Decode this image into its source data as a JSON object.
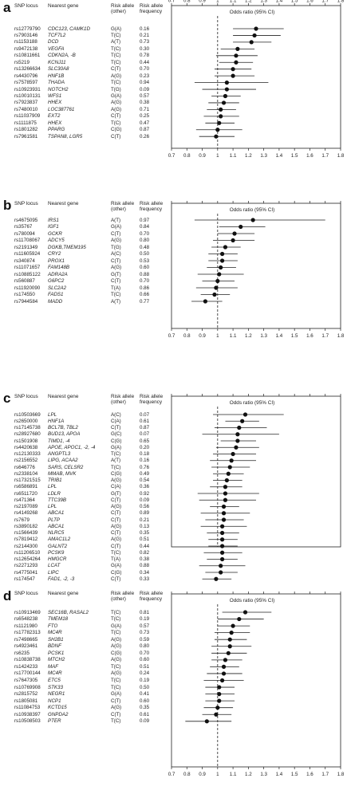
{
  "headers": {
    "snp": "SNP locus",
    "gene": "Nearest gene",
    "risk_allele_line1": "Risk allele",
    "risk_allele_line2": "(other)",
    "freq_line1": "Risk allele",
    "freq_line2": "frequency",
    "odds": "Odds ratio (95% CI)"
  },
  "chart_data": [
    {
      "type": "forest",
      "panel": "a",
      "xlim": [
        0.7,
        1.8
      ],
      "x_ticks": [
        "0.7",
        "0.8",
        "0.9",
        "1",
        "1.1",
        "1.2",
        "1.3",
        "1.4",
        "1.5",
        "1.6",
        "1.7",
        "1.8"
      ],
      "reference_line": 1,
      "xlabel": "Odds ratio (95% CI)",
      "ticks_bottom": true,
      "rows": [
        {
          "snp": "rs12779790",
          "gene": "CDC123, CAMK1D",
          "allele": "G(A)",
          "freq": "0.16",
          "or": 1.25,
          "lo": 1.1,
          "hi": 1.43
        },
        {
          "snp": "rs7903146",
          "gene": "TCF7L2",
          "allele": "T(C)",
          "freq": "0.21",
          "or": 1.24,
          "lo": 1.1,
          "hi": 1.41
        },
        {
          "snp": "rs1153188",
          "gene": "DCD",
          "allele": "A(T)",
          "freq": "0.73",
          "or": 1.22,
          "lo": 1.1,
          "hi": 1.35
        },
        {
          "snp": "rs9472138",
          "gene": "VEGFA",
          "allele": "T(C)",
          "freq": "0.30",
          "or": 1.13,
          "lo": 1.02,
          "hi": 1.24
        },
        {
          "snp": "rs10811661",
          "gene": "CDKN2A, -B",
          "allele": "T(C)",
          "freq": "0.78",
          "or": 1.12,
          "lo": 0.99,
          "hi": 1.26
        },
        {
          "snp": "rs5219",
          "gene": "KCNJ11",
          "allele": "T(C)",
          "freq": "0.44",
          "or": 1.12,
          "lo": 1.01,
          "hi": 1.23
        },
        {
          "snp": "rs13266634",
          "gene": "SLC30A8",
          "allele": "C(T)",
          "freq": "0.70",
          "or": 1.1,
          "lo": 0.98,
          "hi": 1.22
        },
        {
          "snp": "rs4430796",
          "gene": "HNF1B",
          "allele": "A(G)",
          "freq": "0.23",
          "or": 1.1,
          "lo": 0.98,
          "hi": 1.24
        },
        {
          "snp": "rs7578597",
          "gene": "THADA",
          "allele": "T(C)",
          "freq": "0.94",
          "or": 1.06,
          "lo": 0.85,
          "hi": 1.33
        },
        {
          "snp": "rs10923931",
          "gene": "NOTCH2",
          "allele": "T(G)",
          "freq": "0.09",
          "or": 1.06,
          "lo": 0.9,
          "hi": 1.25
        },
        {
          "snp": "rs10010131",
          "gene": "WFS1",
          "allele": "G(A)",
          "freq": "0.57",
          "or": 1.05,
          "lo": 0.96,
          "hi": 1.15
        },
        {
          "snp": "rs7923837",
          "gene": "HHEX",
          "allele": "A(G)",
          "freq": "0.38",
          "or": 1.04,
          "lo": 0.94,
          "hi": 1.14
        },
        {
          "snp": "rs7480010",
          "gene": "LOC387761",
          "allele": "A(G)",
          "freq": "0.71",
          "or": 1.02,
          "lo": 0.93,
          "hi": 1.12
        },
        {
          "snp": "rs11037909",
          "gene": "EXT2",
          "allele": "C(T)",
          "freq": "0.25",
          "or": 1.02,
          "lo": 0.91,
          "hi": 1.14
        },
        {
          "snp": "rs1111875",
          "gene": "HHEX",
          "allele": "T(C)",
          "freq": "0.47",
          "or": 1.01,
          "lo": 0.92,
          "hi": 1.11
        },
        {
          "snp": "rs1801282",
          "gene": "PPARG",
          "allele": "C(G)",
          "freq": "0.87",
          "or": 1.0,
          "lo": 0.86,
          "hi": 1.16
        },
        {
          "snp": "rs7961581",
          "gene": "TSPAN8, LGR5",
          "allele": "C(T)",
          "freq": "0.26",
          "or": 0.99,
          "lo": 0.88,
          "hi": 1.11
        }
      ]
    },
    {
      "type": "forest",
      "panel": "b",
      "xlim": [
        0.7,
        1.8
      ],
      "x_ticks": [
        "0.7",
        "0.8",
        "0.9",
        "1",
        "1.1",
        "1.2",
        "1.3",
        "1.4",
        "1.5",
        "1.6",
        "1.7",
        "1.8"
      ],
      "reference_line": 1,
      "xlabel": "Odds ratio (95% CI)",
      "ticks_bottom": true,
      "rows": [
        {
          "snp": "rs4675095",
          "gene": "IRS1",
          "allele": "A(T)",
          "freq": "0.97",
          "or": 1.23,
          "lo": 0.85,
          "hi": 1.7
        },
        {
          "snp": "rs35767",
          "gene": "IGF1",
          "allele": "G(A)",
          "freq": "0.84",
          "or": 1.15,
          "lo": 1.01,
          "hi": 1.31
        },
        {
          "snp": "rs780094",
          "gene": "GCKR",
          "allele": "C(T)",
          "freq": "0.70",
          "or": 1.11,
          "lo": 1.0,
          "hi": 1.24
        },
        {
          "snp": "rs11708067",
          "gene": "ADCY5",
          "allele": "A(G)",
          "freq": "0.80",
          "or": 1.1,
          "lo": 0.97,
          "hi": 1.24
        },
        {
          "snp": "rs2191349",
          "gene": "DGKB,TMEM195",
          "allele": "T(G)",
          "freq": "0.48",
          "or": 1.05,
          "lo": 0.96,
          "hi": 1.15
        },
        {
          "snp": "rs11605924",
          "gene": "CRY2",
          "allele": "A(C)",
          "freq": "0.50",
          "or": 1.03,
          "lo": 0.94,
          "hi": 1.13
        },
        {
          "snp": "rs340874",
          "gene": "PROX1",
          "allele": "C(T)",
          "freq": "0.53",
          "or": 1.03,
          "lo": 0.94,
          "hi": 1.13
        },
        {
          "snp": "rs11071657",
          "gene": "FAM148B",
          "allele": "A(G)",
          "freq": "0.60",
          "or": 1.02,
          "lo": 0.93,
          "hi": 1.12
        },
        {
          "snp": "rs10885122",
          "gene": "ADRA2A",
          "allele": "G(T)",
          "freq": "0.88",
          "or": 1.01,
          "lo": 0.87,
          "hi": 1.17
        },
        {
          "snp": "rs560887",
          "gene": "G6PC2",
          "allele": "C(T)",
          "freq": "0.70",
          "or": 1.0,
          "lo": 0.9,
          "hi": 1.11
        },
        {
          "snp": "rs11920090",
          "gene": "SLC2A2",
          "allele": "T(A)",
          "freq": "0.86",
          "or": 0.99,
          "lo": 0.86,
          "hi": 1.13
        },
        {
          "snp": "rs174550",
          "gene": "FADS1",
          "allele": "T(C)",
          "freq": "0.66",
          "or": 0.98,
          "lo": 0.89,
          "hi": 1.08
        },
        {
          "snp": "rs7944584",
          "gene": "MADD",
          "allele": "A(T)",
          "freq": "0.77",
          "or": 0.92,
          "lo": 0.83,
          "hi": 1.03
        }
      ]
    },
    {
      "type": "forest",
      "panel": "c",
      "xlim": [
        0.7,
        1.8
      ],
      "x_ticks": [
        "0.7",
        "0.8",
        "0.9",
        "1",
        "1.1",
        "1.2",
        "1.3",
        "1.4",
        "1.5",
        "1.6",
        "1.7",
        "1.8"
      ],
      "reference_line": 1,
      "xlabel": "Odds ratio (95% CI)",
      "ticks_bottom": false,
      "rows": [
        {
          "snp": "rs10503669",
          "gene": "LPL",
          "allele": "A(C)",
          "freq": "0.07",
          "or": 1.18,
          "lo": 0.97,
          "hi": 1.43
        },
        {
          "snp": "rs2650000",
          "gene": "HNF1A",
          "allele": "C(A)",
          "freq": "0.61",
          "or": 1.16,
          "lo": 1.05,
          "hi": 1.27
        },
        {
          "snp": "rs17145738",
          "gene": "BCL7B, TBL2",
          "allele": "C(T)",
          "freq": "0.87",
          "or": 1.14,
          "lo": 0.98,
          "hi": 1.32
        },
        {
          "snp": "rs28927680",
          "gene": "BUD13, APOA",
          "allele": "G(C)",
          "freq": "0.07",
          "or": 1.13,
          "lo": 0.9,
          "hi": 1.4
        },
        {
          "snp": "rs1501908",
          "gene": "TIMD1, -4",
          "allele": "C(G)",
          "freq": "0.65",
          "or": 1.13,
          "lo": 1.02,
          "hi": 1.25
        },
        {
          "snp": "rs4420638",
          "gene": "APOE, APOC1, -2, -4",
          "allele": "G(A)",
          "freq": "0.20",
          "or": 1.12,
          "lo": 0.99,
          "hi": 1.27
        },
        {
          "snp": "rs12130333",
          "gene": "ANGPTL3",
          "allele": "T(C)",
          "freq": "0.18",
          "or": 1.1,
          "lo": 0.97,
          "hi": 1.25
        },
        {
          "snp": "rs2156552",
          "gene": "LIPG, ACAA2",
          "allele": "A(T)",
          "freq": "0.16",
          "or": 1.09,
          "lo": 0.95,
          "hi": 1.25
        },
        {
          "snp": "rs646776",
          "gene": "SARS, CELSR2",
          "allele": "T(C)",
          "freq": "0.76",
          "or": 1.08,
          "lo": 0.96,
          "hi": 1.21
        },
        {
          "snp": "rs2338104",
          "gene": "MMAB, MVK",
          "allele": "C(G)",
          "freq": "0.49",
          "or": 1.07,
          "lo": 0.97,
          "hi": 1.17
        },
        {
          "snp": "rs17321515",
          "gene": "TRIB1",
          "allele": "A(G)",
          "freq": "0.54",
          "or": 1.06,
          "lo": 0.97,
          "hi": 1.16
        },
        {
          "snp": "rs6586891",
          "gene": "LPL",
          "allele": "C(A)",
          "freq": "0.36",
          "or": 1.05,
          "lo": 0.95,
          "hi": 1.16
        },
        {
          "snp": "rs6511720",
          "gene": "LDLR",
          "allele": "G(T)",
          "freq": "0.92",
          "or": 1.05,
          "lo": 0.87,
          "hi": 1.27
        },
        {
          "snp": "rs471364",
          "gene": "TTC39B",
          "allele": "C(T)",
          "freq": "0.09",
          "or": 1.05,
          "lo": 0.88,
          "hi": 1.25
        },
        {
          "snp": "rs2197089",
          "gene": "LPL",
          "allele": "A(G)",
          "freq": "0.56",
          "or": 1.04,
          "lo": 0.95,
          "hi": 1.14
        },
        {
          "snp": "rs4149268",
          "gene": "ABCA1",
          "allele": "C(T)",
          "freq": "0.89",
          "or": 1.04,
          "lo": 0.89,
          "hi": 1.21
        },
        {
          "snp": "rs7679",
          "gene": "PLTP",
          "allele": "C(T)",
          "freq": "0.21",
          "or": 1.04,
          "lo": 0.92,
          "hi": 1.17
        },
        {
          "snp": "rs3890182",
          "gene": "ABCA1",
          "allele": "A(G)",
          "freq": "0.13",
          "or": 1.03,
          "lo": 0.89,
          "hi": 1.19
        },
        {
          "snp": "rs1566439",
          "gene": "NLRC5",
          "allele": "C(T)",
          "freq": "0.35",
          "or": 1.03,
          "lo": 0.93,
          "hi": 1.14
        },
        {
          "snp": "rs7819412",
          "gene": "AMAC1L2",
          "allele": "A(G)",
          "freq": "0.51",
          "or": 1.03,
          "lo": 0.94,
          "hi": 1.13
        },
        {
          "snp": "rs2144300",
          "gene": "GALNT2",
          "allele": "C(T)",
          "freq": "0.44",
          "or": 1.03,
          "lo": 0.94,
          "hi": 1.13
        },
        {
          "snp": "rs11206510",
          "gene": "PCSK9",
          "allele": "T(C)",
          "freq": "0.82",
          "or": 1.03,
          "lo": 0.91,
          "hi": 1.16
        },
        {
          "snp": "rs12654264",
          "gene": "HMGCR",
          "allele": "T(A)",
          "freq": "0.38",
          "or": 1.03,
          "lo": 0.93,
          "hi": 1.13
        },
        {
          "snp": "rs2271293",
          "gene": "LCAT",
          "allele": "G(A)",
          "freq": "0.88",
          "or": 1.02,
          "lo": 0.88,
          "hi": 1.18
        },
        {
          "snp": "rs4775041",
          "gene": "LIPC",
          "allele": "C(G)",
          "freq": "0.34",
          "or": 1.02,
          "lo": 0.92,
          "hi": 1.13
        },
        {
          "snp": "rs174547",
          "gene": "FAD1, -2, -3",
          "allele": "C(T)",
          "freq": "0.33",
          "or": 0.99,
          "lo": 0.9,
          "hi": 1.09
        }
      ]
    },
    {
      "type": "forest",
      "panel": "d",
      "xlim": [
        0.7,
        1.8
      ],
      "x_ticks": [
        "0.7",
        "0.8",
        "0.9",
        "1",
        "1.1",
        "1.2",
        "1.3",
        "1.4",
        "1.5",
        "1.6",
        "1.7",
        "1.8"
      ],
      "reference_line": 1,
      "xlabel": "Odds ratio (95% CI)",
      "ticks_bottom": true,
      "rows": [
        {
          "snp": "rs10913469",
          "gene": "SEC16B, RASAL2",
          "allele": "T(C)",
          "freq": "0.81",
          "or": 1.18,
          "lo": 1.03,
          "hi": 1.35
        },
        {
          "snp": "rs6548238",
          "gene": "TMEM18",
          "allele": "T(C)",
          "freq": "0.19",
          "or": 1.14,
          "lo": 1.0,
          "hi": 1.3
        },
        {
          "snp": "rs1121980",
          "gene": "FTO",
          "allele": "G(A)",
          "freq": "0.57",
          "or": 1.1,
          "lo": 1.0,
          "hi": 1.21
        },
        {
          "snp": "rs17782313",
          "gene": "MC4R",
          "allele": "T(C)",
          "freq": "0.73",
          "or": 1.09,
          "lo": 0.98,
          "hi": 1.21
        },
        {
          "snp": "rs7498665",
          "gene": "SH2B1",
          "allele": "A(G)",
          "freq": "0.59",
          "or": 1.08,
          "lo": 0.98,
          "hi": 1.19
        },
        {
          "snp": "rs4923461",
          "gene": "BDNF",
          "allele": "A(G)",
          "freq": "0.80",
          "or": 1.08,
          "lo": 0.96,
          "hi": 1.22
        },
        {
          "snp": "rs6235",
          "gene": "PCSK1",
          "allele": "C(G)",
          "freq": "0.70",
          "or": 1.07,
          "lo": 0.96,
          "hi": 1.19
        },
        {
          "snp": "rs10838738",
          "gene": "MTCH2",
          "allele": "A(G)",
          "freq": "0.60",
          "or": 1.05,
          "lo": 0.96,
          "hi": 1.16
        },
        {
          "snp": "rs1424233",
          "gene": "MAF",
          "allele": "T(C)",
          "freq": "0.51",
          "or": 1.04,
          "lo": 0.95,
          "hi": 1.14
        },
        {
          "snp": "rs17700144",
          "gene": "MC4R",
          "allele": "A(G)",
          "freq": "0.24",
          "or": 1.04,
          "lo": 0.93,
          "hi": 1.16
        },
        {
          "snp": "rs7647305",
          "gene": "ETC5",
          "allele": "T(C)",
          "freq": "0.19",
          "or": 1.03,
          "lo": 0.91,
          "hi": 1.17
        },
        {
          "snp": "rs10769908",
          "gene": "STK33",
          "allele": "T(C)",
          "freq": "0.50",
          "or": 1.01,
          "lo": 0.92,
          "hi": 1.11
        },
        {
          "snp": "rs2815752",
          "gene": "NEGR1",
          "allele": "G(A)",
          "freq": "0.41",
          "or": 1.01,
          "lo": 0.92,
          "hi": 1.11
        },
        {
          "snp": "rs1805081",
          "gene": "NCP1",
          "allele": "C(T)",
          "freq": "0.60",
          "or": 1.01,
          "lo": 0.92,
          "hi": 1.11
        },
        {
          "snp": "rs11084753",
          "gene": "KCTD15",
          "allele": "A(G)",
          "freq": "0.35",
          "or": 1.0,
          "lo": 0.91,
          "hi": 1.1
        },
        {
          "snp": "rs10938397",
          "gene": "GNPDA2",
          "allele": "C(T)",
          "freq": "0.61",
          "or": 0.99,
          "lo": 0.9,
          "hi": 1.09
        },
        {
          "snp": "rs10508503",
          "gene": "PTER",
          "allele": "T(C)",
          "freq": "0.09",
          "or": 0.93,
          "lo": 0.79,
          "hi": 1.09
        }
      ]
    }
  ]
}
